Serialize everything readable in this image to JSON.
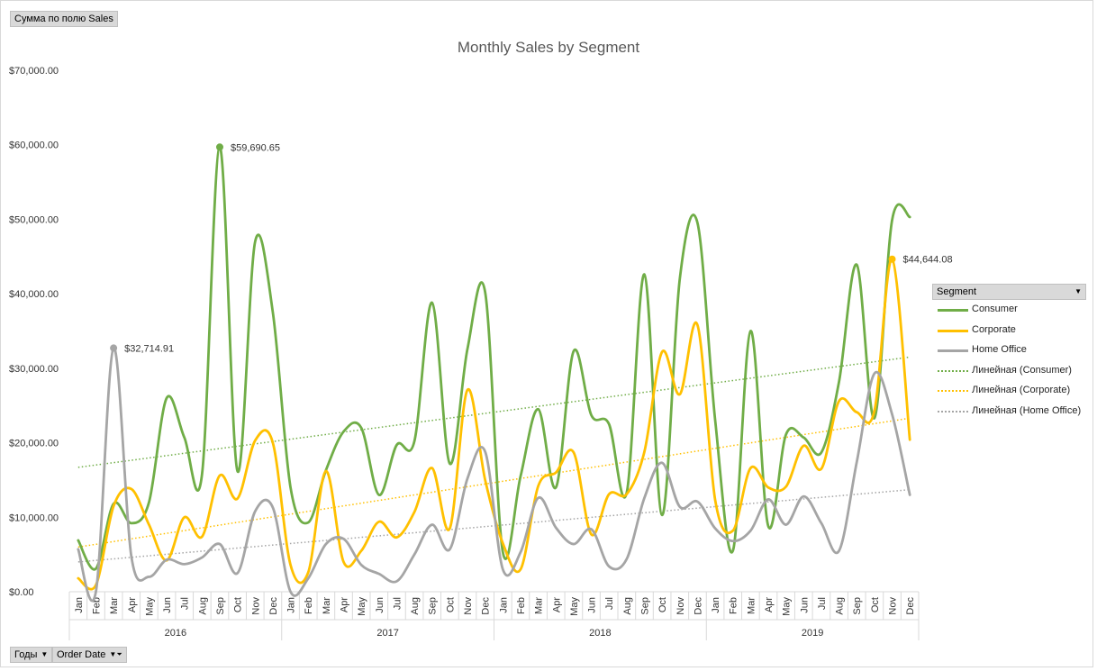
{
  "pivot": {
    "values_button": "Сумма по полю Sales",
    "years_button": "Годы",
    "order_date_button": "Order Date"
  },
  "legend": {
    "header": "Segment",
    "items": [
      {
        "label": "Consumer",
        "color": "#70ad47",
        "style": "solid"
      },
      {
        "label": "Corporate",
        "color": "#ffc000",
        "style": "solid"
      },
      {
        "label": "Home Office",
        "color": "#a5a5a5",
        "style": "solid"
      },
      {
        "label": "Линейная (Consumer)",
        "color": "#70ad47",
        "style": "dotted"
      },
      {
        "label": "Линейная (Corporate)",
        "color": "#ffc000",
        "style": "dotted"
      },
      {
        "label": "Линейная (Home Office)",
        "color": "#a5a5a5",
        "style": "dotted"
      }
    ]
  },
  "chart_data": {
    "type": "line",
    "title": "Monthly Sales by Segment",
    "xlabel": "",
    "ylabel": "",
    "ylim": [
      0,
      70000
    ],
    "yticks": [
      "$0.00",
      "$10,000.00",
      "$20,000.00",
      "$30,000.00",
      "$40,000.00",
      "$50,000.00",
      "$60,000.00",
      "$70,000.00"
    ],
    "ytick_values": [
      0,
      10000,
      20000,
      30000,
      40000,
      50000,
      60000,
      70000
    ],
    "grid": false,
    "smooth": true,
    "legend_position": "right",
    "years": [
      "2016",
      "2017",
      "2018",
      "2019"
    ],
    "months": [
      "Jan",
      "Feb",
      "Mar",
      "Apr",
      "May",
      "Jun",
      "Jul",
      "Aug",
      "Sep",
      "Oct",
      "Nov",
      "Dec"
    ],
    "series": [
      {
        "name": "Consumer",
        "color": "#70ad47",
        "values": [
          6900,
          3100,
          11800,
          9200,
          12000,
          26000,
          20700,
          15800,
          59690.65,
          16200,
          47000,
          37500,
          14000,
          9300,
          16300,
          21500,
          22000,
          13000,
          19700,
          20200,
          38800,
          17200,
          32600,
          40200,
          5300,
          15500,
          24500,
          14000,
          32300,
          23700,
          22500,
          13300,
          42600,
          10300,
          42000,
          49500,
          23000,
          5500,
          35000,
          8800,
          21100,
          20700,
          18700,
          28200,
          43900,
          23300,
          49900,
          50300
        ],
        "trendline": {
          "label": "Линейная (Consumer)",
          "start": 16700,
          "end": 31500
        }
      },
      {
        "name": "Corporate",
        "color": "#ffc000",
        "values": [
          1800,
          900,
          11500,
          13800,
          9000,
          4200,
          10000,
          7400,
          15600,
          12500,
          20300,
          20000,
          3600,
          2600,
          16200,
          4000,
          5500,
          9400,
          7300,
          10700,
          16600,
          8500,
          27100,
          15000,
          6500,
          3000,
          14200,
          16000,
          18700,
          7700,
          13100,
          13100,
          18800,
          32200,
          26500,
          35800,
          12300,
          8200,
          16600,
          14000,
          14100,
          19600,
          16500,
          25600,
          24100,
          24300,
          44644.08,
          20400
        ],
        "trendline": {
          "label": "Линейная (Corporate)",
          "start": 6000,
          "end": 23300
        }
      },
      {
        "name": "Home Office",
        "color": "#a5a5a5",
        "values": [
          5700,
          0,
          32714.91,
          4800,
          2000,
          4300,
          3700,
          4600,
          6400,
          2500,
          10800,
          11300,
          0,
          1800,
          6400,
          7100,
          3600,
          2400,
          1400,
          5000,
          9000,
          5700,
          15200,
          18800,
          3000,
          5300,
          12600,
          8600,
          6400,
          8400,
          3400,
          4400,
          12600,
          17300,
          11400,
          12100,
          8500,
          6800,
          8200,
          12400,
          9000,
          12800,
          9200,
          5500,
          17400,
          29300,
          23800,
          13000
        ],
        "trendline": {
          "label": "Линейная (Home Office)",
          "start": 4000,
          "end": 13700
        }
      }
    ],
    "annotations": [
      {
        "series": "Home Office",
        "index": 2,
        "text": "$32,714.91"
      },
      {
        "series": "Consumer",
        "index": 8,
        "text": "$59,690.65"
      },
      {
        "series": "Corporate",
        "index": 46,
        "text": "$44,644.08"
      }
    ]
  }
}
